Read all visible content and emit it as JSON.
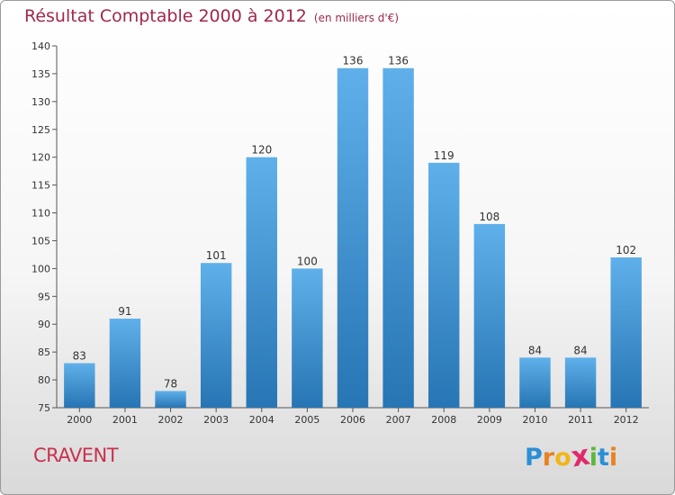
{
  "title": {
    "main": "Résultat Comptable 2000 à 2012",
    "subtitle": "(en milliers d'€)"
  },
  "footer": {
    "city": "CRAVENT"
  },
  "brand": {
    "letters": [
      "P",
      "r",
      "o",
      "x",
      "i",
      "t",
      "i"
    ],
    "colors": [
      "#2a8fd6",
      "#e8811f",
      "#f2b515",
      "#e02a6c",
      "#5cb83a",
      "#2a8fd6",
      "#e8811f"
    ]
  },
  "colors": {
    "bar_top": "#5fb0ea",
    "bar_bottom": "#2775b4",
    "title": "#a0284a",
    "city": "#c8314e"
  },
  "chart_data": {
    "type": "bar",
    "categories": [
      "2000",
      "2001",
      "2002",
      "2003",
      "2004",
      "2005",
      "2006",
      "2007",
      "2008",
      "2009",
      "2010",
      "2011",
      "2012"
    ],
    "values": [
      83,
      91,
      78,
      101,
      120,
      100,
      136,
      136,
      119,
      108,
      84,
      84,
      102
    ],
    "title": "Résultat Comptable 2000 à 2012",
    "subtitle": "(en milliers d'€)",
    "ylim": [
      75,
      140
    ],
    "yticks": [
      75,
      80,
      85,
      90,
      95,
      100,
      105,
      110,
      115,
      120,
      125,
      130,
      135,
      140
    ],
    "data_labels": true,
    "grid": false
  }
}
